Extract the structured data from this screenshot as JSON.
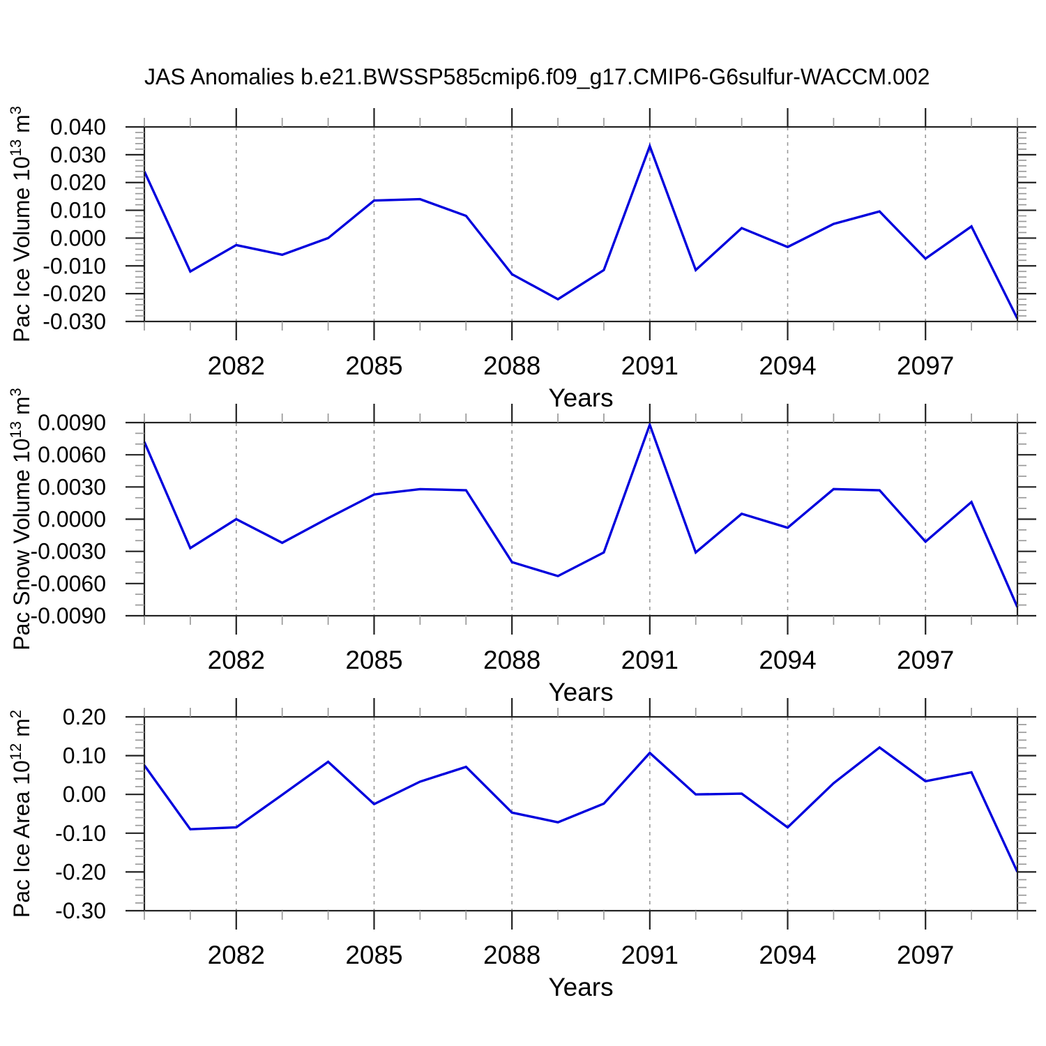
{
  "title": "JAS Anomalies b.e21.BWSSP585cmip6.f09_g17.CMIP6-G6sulfur-WACCM.002",
  "colors": {
    "line": "#0000dd",
    "frame": "#222222",
    "minor_tick": "#999999",
    "gridline": "#999999",
    "text": "#000000",
    "background": "#ffffff"
  },
  "chart_data": [
    {
      "type": "line",
      "name": "pac-ice-volume",
      "x": [
        2080,
        2081,
        2082,
        2083,
        2084,
        2085,
        2086,
        2087,
        2088,
        2089,
        2090,
        2091,
        2092,
        2093,
        2094,
        2095,
        2096,
        2097,
        2098,
        2099
      ],
      "series": [
        {
          "name": "Pac Ice Volume anomaly",
          "values": [
            0.024,
            -0.012,
            -0.0025,
            -0.006,
            0.0,
            0.0135,
            0.014,
            0.008,
            -0.013,
            -0.022,
            -0.0115,
            0.0331,
            -0.0115,
            0.0036,
            -0.0032,
            0.0051,
            0.0096,
            -0.0074,
            0.0042,
            -0.029
          ]
        }
      ],
      "xlabel": "Years",
      "ylabel": "Pac Ice Volume 10^13 m^3",
      "ylabel_parts": [
        {
          "t": "Pac Ice Volume 10",
          "sup": false
        },
        {
          "t": "13",
          "sup": true
        },
        {
          "t": " m",
          "sup": false
        },
        {
          "t": "3",
          "sup": true
        }
      ],
      "xlim": [
        2080,
        2099
      ],
      "ylim": [
        -0.03,
        0.04
      ],
      "yticks": [
        0.04,
        0.03,
        0.02,
        0.01,
        0.0,
        -0.01,
        -0.02,
        -0.03
      ],
      "ytick_labels": [
        "0.040",
        "0.030",
        "0.020",
        "0.010",
        "0.000",
        "-0.010",
        "-0.020",
        "-0.030"
      ],
      "ytick_minor_step": 0.002,
      "xticks_major": [
        2082,
        2085,
        2088,
        2091,
        2094,
        2097
      ],
      "xtick_labels": [
        "2082",
        "2085",
        "2088",
        "2091",
        "2094",
        "2097"
      ],
      "grid": "vertical-dashed-at-major-xticks",
      "legend": "none"
    },
    {
      "type": "line",
      "name": "pac-snow-volume",
      "x": [
        2080,
        2081,
        2082,
        2083,
        2084,
        2085,
        2086,
        2087,
        2088,
        2089,
        2090,
        2091,
        2092,
        2093,
        2094,
        2095,
        2096,
        2097,
        2098,
        2099
      ],
      "series": [
        {
          "name": "Pac Snow Volume anomaly",
          "values": [
            0.0072,
            -0.0027,
            0.0,
            -0.0022,
            0.0001,
            0.0023,
            0.0028,
            0.0027,
            -0.004,
            -0.0053,
            -0.0031,
            0.0088,
            -0.0031,
            0.0005,
            -0.0008,
            0.0028,
            0.0027,
            -0.0021,
            0.0016,
            -0.0082
          ]
        }
      ],
      "xlabel": "Years",
      "ylabel": "Pac Snow Volume 10^13 m^3",
      "ylabel_parts": [
        {
          "t": "Pac Snow Volume 10",
          "sup": false
        },
        {
          "t": "13",
          "sup": true
        },
        {
          "t": " m",
          "sup": false
        },
        {
          "t": "3",
          "sup": true
        }
      ],
      "xlim": [
        2080,
        2099
      ],
      "ylim": [
        -0.009,
        0.009
      ],
      "yticks": [
        0.009,
        0.006,
        0.003,
        0.0,
        -0.003,
        -0.006,
        -0.009
      ],
      "ytick_labels": [
        "0.0090",
        "0.0060",
        "0.0030",
        "0.0000",
        "-0.0030",
        "-0.0060",
        "-0.0090"
      ],
      "ytick_minor_step": 0.001,
      "xticks_major": [
        2082,
        2085,
        2088,
        2091,
        2094,
        2097
      ],
      "xtick_labels": [
        "2082",
        "2085",
        "2088",
        "2091",
        "2094",
        "2097"
      ],
      "grid": "vertical-dashed-at-major-xticks",
      "legend": "none"
    },
    {
      "type": "line",
      "name": "pac-ice-area",
      "x": [
        2080,
        2081,
        2082,
        2083,
        2084,
        2085,
        2086,
        2087,
        2088,
        2089,
        2090,
        2091,
        2092,
        2093,
        2094,
        2095,
        2096,
        2097,
        2098,
        2099
      ],
      "series": [
        {
          "name": "Pac Ice Area anomaly",
          "values": [
            0.075,
            -0.09,
            -0.085,
            -0.001,
            0.084,
            -0.025,
            0.033,
            0.071,
            -0.047,
            -0.072,
            -0.024,
            0.107,
            0.0,
            0.002,
            -0.085,
            0.029,
            0.121,
            0.034,
            0.057,
            -0.2
          ]
        }
      ],
      "xlabel": "Years",
      "ylabel": "Pac Ice Area 10^12 m^2",
      "ylabel_parts": [
        {
          "t": "Pac Ice Area 10",
          "sup": false
        },
        {
          "t": "12",
          "sup": true
        },
        {
          "t": " m",
          "sup": false
        },
        {
          "t": "2",
          "sup": true
        }
      ],
      "xlim": [
        2080,
        2099
      ],
      "ylim": [
        -0.3,
        0.2
      ],
      "yticks": [
        0.2,
        0.1,
        0.0,
        -0.1,
        -0.2,
        -0.3
      ],
      "ytick_labels": [
        "0.20",
        "0.10",
        "0.00",
        "-0.10",
        "-0.20",
        "-0.30"
      ],
      "ytick_minor_step": 0.02,
      "xticks_major": [
        2082,
        2085,
        2088,
        2091,
        2094,
        2097
      ],
      "xtick_labels": [
        "2082",
        "2085",
        "2088",
        "2091",
        "2094",
        "2097"
      ],
      "grid": "vertical-dashed-at-major-xticks",
      "legend": "none"
    }
  ]
}
